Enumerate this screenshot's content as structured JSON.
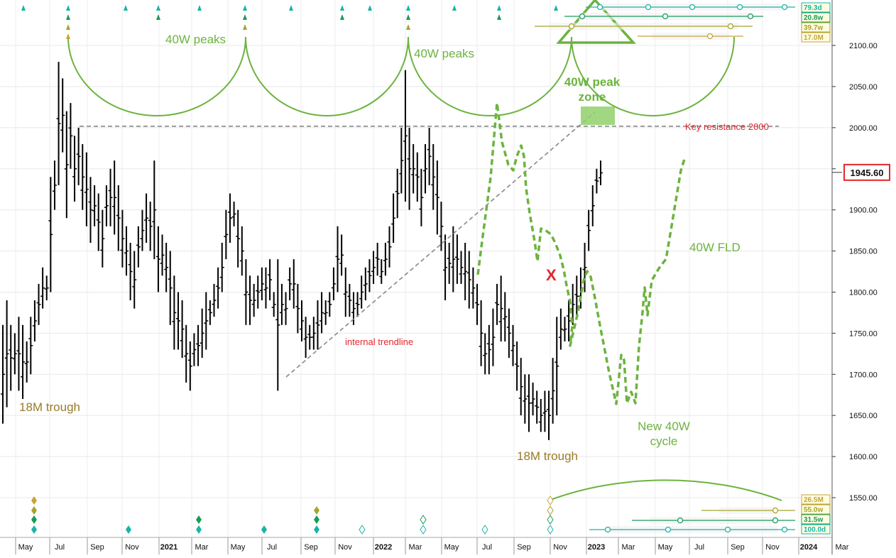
{
  "chart_data": {
    "type": "ohlc",
    "price_axis": {
      "ticks": [
        2100,
        2050,
        2000,
        1950,
        1900,
        1850,
        1800,
        1750,
        1700,
        1650,
        1600,
        1550
      ],
      "tick_labels": [
        "2100.00",
        "2050.00",
        "2000.00",
        "1950.00",
        "1900.00",
        "1850.00",
        "1800.00",
        "1750.00",
        "1700.00",
        "1650.00",
        "1600.00",
        "1550.00"
      ],
      "current_price": "1945.60",
      "current_price_value": 1945.6
    },
    "time_axis": {
      "labels": [
        "May",
        "Jul",
        "Sep",
        "Nov",
        "2021",
        "Mar",
        "May",
        "Jul",
        "Sep",
        "Nov",
        "2022",
        "Mar",
        "May",
        "Jul",
        "Sep",
        "Nov",
        "2023",
        "Mar",
        "May",
        "Jul",
        "Sep",
        "Nov",
        "2024",
        "Mar"
      ]
    },
    "weekly_bars": [
      {
        "h": 1760,
        "l": 1640
      },
      {
        "h": 1790,
        "l": 1660
      },
      {
        "h": 1760,
        "l": 1680
      },
      {
        "h": 1750,
        "l": 1700
      },
      {
        "h": 1770,
        "l": 1680
      },
      {
        "h": 1760,
        "l": 1670
      },
      {
        "h": 1740,
        "l": 1690
      },
      {
        "h": 1770,
        "l": 1700
      },
      {
        "h": 1790,
        "l": 1740
      },
      {
        "h": 1810,
        "l": 1760
      },
      {
        "h": 1830,
        "l": 1780
      },
      {
        "h": 1820,
        "l": 1790
      },
      {
        "h": 1940,
        "l": 1800
      },
      {
        "h": 1960,
        "l": 1900
      },
      {
        "h": 2080,
        "l": 1930
      },
      {
        "h": 2060,
        "l": 1970
      },
      {
        "h": 2020,
        "l": 1890
      },
      {
        "h": 2030,
        "l": 1950
      },
      {
        "h": 1990,
        "l": 1910
      },
      {
        "h": 2000,
        "l": 1930
      },
      {
        "h": 1980,
        "l": 1900
      },
      {
        "h": 1970,
        "l": 1880
      },
      {
        "h": 1940,
        "l": 1860
      },
      {
        "h": 1930,
        "l": 1880
      },
      {
        "h": 1920,
        "l": 1850
      },
      {
        "h": 1900,
        "l": 1830
      },
      {
        "h": 1930,
        "l": 1880
      },
      {
        "h": 1950,
        "l": 1880
      },
      {
        "h": 1960,
        "l": 1870
      },
      {
        "h": 1930,
        "l": 1850
      },
      {
        "h": 1900,
        "l": 1830
      },
      {
        "h": 1880,
        "l": 1820
      },
      {
        "h": 1860,
        "l": 1790
      },
      {
        "h": 1850,
        "l": 1780
      },
      {
        "h": 1880,
        "l": 1830
      },
      {
        "h": 1900,
        "l": 1850
      },
      {
        "h": 1920,
        "l": 1860
      },
      {
        "h": 1910,
        "l": 1850
      },
      {
        "h": 1960,
        "l": 1840
      },
      {
        "h": 1880,
        "l": 1800
      },
      {
        "h": 1870,
        "l": 1820
      },
      {
        "h": 1860,
        "l": 1800
      },
      {
        "h": 1850,
        "l": 1760
      },
      {
        "h": 1820,
        "l": 1730
      },
      {
        "h": 1800,
        "l": 1730
      },
      {
        "h": 1790,
        "l": 1720
      },
      {
        "h": 1760,
        "l": 1690
      },
      {
        "h": 1740,
        "l": 1680
      },
      {
        "h": 1750,
        "l": 1710
      },
      {
        "h": 1760,
        "l": 1710
      },
      {
        "h": 1780,
        "l": 1720
      },
      {
        "h": 1800,
        "l": 1730
      },
      {
        "h": 1790,
        "l": 1760
      },
      {
        "h": 1810,
        "l": 1770
      },
      {
        "h": 1830,
        "l": 1780
      },
      {
        "h": 1860,
        "l": 1800
      },
      {
        "h": 1900,
        "l": 1840
      },
      {
        "h": 1920,
        "l": 1860
      },
      {
        "h": 1910,
        "l": 1880
      },
      {
        "h": 1900,
        "l": 1830
      },
      {
        "h": 1880,
        "l": 1820
      },
      {
        "h": 1840,
        "l": 1760
      },
      {
        "h": 1820,
        "l": 1760
      },
      {
        "h": 1810,
        "l": 1770
      },
      {
        "h": 1820,
        "l": 1780
      },
      {
        "h": 1830,
        "l": 1790
      },
      {
        "h": 1830,
        "l": 1780
      },
      {
        "h": 1840,
        "l": 1790
      },
      {
        "h": 1800,
        "l": 1770
      },
      {
        "h": 1840,
        "l": 1680
      },
      {
        "h": 1810,
        "l": 1760
      },
      {
        "h": 1800,
        "l": 1760
      },
      {
        "h": 1830,
        "l": 1790
      },
      {
        "h": 1840,
        "l": 1780
      },
      {
        "h": 1810,
        "l": 1750
      },
      {
        "h": 1790,
        "l": 1740
      },
      {
        "h": 1770,
        "l": 1720
      },
      {
        "h": 1760,
        "l": 1730
      },
      {
        "h": 1770,
        "l": 1730
      },
      {
        "h": 1790,
        "l": 1730
      },
      {
        "h": 1800,
        "l": 1750
      },
      {
        "h": 1790,
        "l": 1760
      },
      {
        "h": 1800,
        "l": 1770
      },
      {
        "h": 1830,
        "l": 1790
      },
      {
        "h": 1880,
        "l": 1800
      },
      {
        "h": 1870,
        "l": 1820
      },
      {
        "h": 1830,
        "l": 1770
      },
      {
        "h": 1810,
        "l": 1770
      },
      {
        "h": 1800,
        "l": 1760
      },
      {
        "h": 1800,
        "l": 1770
      },
      {
        "h": 1820,
        "l": 1780
      },
      {
        "h": 1830,
        "l": 1790
      },
      {
        "h": 1840,
        "l": 1800
      },
      {
        "h": 1850,
        "l": 1810
      },
      {
        "h": 1860,
        "l": 1820
      },
      {
        "h": 1840,
        "l": 1810
      },
      {
        "h": 1860,
        "l": 1820
      },
      {
        "h": 1880,
        "l": 1830
      },
      {
        "h": 1920,
        "l": 1860
      },
      {
        "h": 1950,
        "l": 1890
      },
      {
        "h": 2000,
        "l": 1920
      },
      {
        "h": 2070,
        "l": 1910
      },
      {
        "h": 2000,
        "l": 1900
      },
      {
        "h": 1980,
        "l": 1920
      },
      {
        "h": 1970,
        "l": 1910
      },
      {
        "h": 1950,
        "l": 1880
      },
      {
        "h": 1980,
        "l": 1920
      },
      {
        "h": 2000,
        "l": 1930
      },
      {
        "h": 1980,
        "l": 1900
      },
      {
        "h": 1960,
        "l": 1870
      },
      {
        "h": 1910,
        "l": 1850
      },
      {
        "h": 1870,
        "l": 1790
      },
      {
        "h": 1860,
        "l": 1810
      },
      {
        "h": 1880,
        "l": 1800
      },
      {
        "h": 1870,
        "l": 1810
      },
      {
        "h": 1850,
        "l": 1810
      },
      {
        "h": 1860,
        "l": 1790
      },
      {
        "h": 1850,
        "l": 1780
      },
      {
        "h": 1830,
        "l": 1780
      },
      {
        "h": 1810,
        "l": 1760
      },
      {
        "h": 1790,
        "l": 1710
      },
      {
        "h": 1750,
        "l": 1700
      },
      {
        "h": 1760,
        "l": 1700
      },
      {
        "h": 1780,
        "l": 1710
      },
      {
        "h": 1810,
        "l": 1760
      },
      {
        "h": 1820,
        "l": 1740
      },
      {
        "h": 1800,
        "l": 1740
      },
      {
        "h": 1780,
        "l": 1720
      },
      {
        "h": 1760,
        "l": 1710
      },
      {
        "h": 1740,
        "l": 1680
      },
      {
        "h": 1720,
        "l": 1650
      },
      {
        "h": 1700,
        "l": 1640
      },
      {
        "h": 1700,
        "l": 1630
      },
      {
        "h": 1690,
        "l": 1650
      },
      {
        "h": 1680,
        "l": 1640
      },
      {
        "h": 1670,
        "l": 1630
      },
      {
        "h": 1680,
        "l": 1630
      },
      {
        "h": 1680,
        "l": 1620
      },
      {
        "h": 1720,
        "l": 1640
      },
      {
        "h": 1770,
        "l": 1650
      },
      {
        "h": 1780,
        "l": 1730
      },
      {
        "h": 1770,
        "l": 1740
      },
      {
        "h": 1790,
        "l": 1740
      },
      {
        "h": 1810,
        "l": 1760
      },
      {
        "h": 1820,
        "l": 1770
      },
      {
        "h": 1830,
        "l": 1780
      },
      {
        "h": 1860,
        "l": 1800
      },
      {
        "h": 1900,
        "l": 1850
      },
      {
        "h": 1930,
        "l": 1880
      },
      {
        "h": 1950,
        "l": 1920
      },
      {
        "h": 1960,
        "l": 1930
      }
    ],
    "fld_projection": [
      {
        "x": 673,
        "y": 387
      },
      {
        "x": 679,
        "y": 340
      },
      {
        "x": 691,
        "y": 250
      },
      {
        "x": 700,
        "y": 145
      },
      {
        "x": 707,
        "y": 200
      },
      {
        "x": 716,
        "y": 232
      },
      {
        "x": 723,
        "y": 240
      },
      {
        "x": 728,
        "y": 220
      },
      {
        "x": 734,
        "y": 205
      },
      {
        "x": 738,
        "y": 220
      },
      {
        "x": 741,
        "y": 265
      },
      {
        "x": 746,
        "y": 300
      },
      {
        "x": 753,
        "y": 340
      },
      {
        "x": 757,
        "y": 368
      },
      {
        "x": 762,
        "y": 322
      },
      {
        "x": 769,
        "y": 325
      },
      {
        "x": 776,
        "y": 330
      },
      {
        "x": 782,
        "y": 342
      },
      {
        "x": 789,
        "y": 360
      },
      {
        "x": 794,
        "y": 380
      },
      {
        "x": 798,
        "y": 402
      },
      {
        "x": 803,
        "y": 425
      },
      {
        "x": 806,
        "y": 460
      },
      {
        "x": 803,
        "y": 487
      },
      {
        "x": 814,
        "y": 440
      },
      {
        "x": 822,
        "y": 395
      },
      {
        "x": 827,
        "y": 382
      },
      {
        "x": 832,
        "y": 390
      },
      {
        "x": 838,
        "y": 420
      },
      {
        "x": 845,
        "y": 458
      },
      {
        "x": 852,
        "y": 494
      },
      {
        "x": 858,
        "y": 525
      },
      {
        "x": 868,
        "y": 569
      },
      {
        "x": 875,
        "y": 500
      },
      {
        "x": 879,
        "y": 507
      },
      {
        "x": 883,
        "y": 568
      },
      {
        "x": 889,
        "y": 552
      },
      {
        "x": 895,
        "y": 568
      },
      {
        "x": 900,
        "y": 488
      },
      {
        "x": 905,
        "y": 440
      },
      {
        "x": 908,
        "y": 405
      },
      {
        "x": 912,
        "y": 444
      },
      {
        "x": 918,
        "y": 395
      },
      {
        "x": 928,
        "y": 378
      },
      {
        "x": 938,
        "y": 365
      },
      {
        "x": 944,
        "y": 330
      },
      {
        "x": 952,
        "y": 282
      },
      {
        "x": 959,
        "y": 240
      },
      {
        "x": 965,
        "y": 221
      }
    ],
    "resistance_level": 2000,
    "annotations": {
      "peaks_1": "40W peaks",
      "peaks_2": "40W peaks",
      "peak_zone": "40W peak\nzone",
      "resistance": "Key resistance 2000",
      "trendline": "internal trendline",
      "fld": "40W FLD",
      "trough_left": "18M trough",
      "trough_right": "18M trough",
      "new_cycle": "New 40W\ncycle",
      "x_mark": "X"
    },
    "cycle_labels_top": [
      "79.3d",
      "20.8w",
      "39.7w",
      "17.0M"
    ],
    "cycle_labels_bottom": [
      "26.5M",
      "55.0w",
      "31.5w",
      "100.0d"
    ],
    "colors": {
      "bars": "#000000",
      "cycle_green": "#6cb33f",
      "trough_label": "#9a7b28",
      "resistance_text": "#e3262c",
      "price_box": "#e3262c",
      "teal": "#1ab3a6",
      "dark_green": "#1a9a5a",
      "olive": "#a8a32a",
      "gold": "#c8a33a",
      "zone_fill": "#8fd06a"
    }
  }
}
